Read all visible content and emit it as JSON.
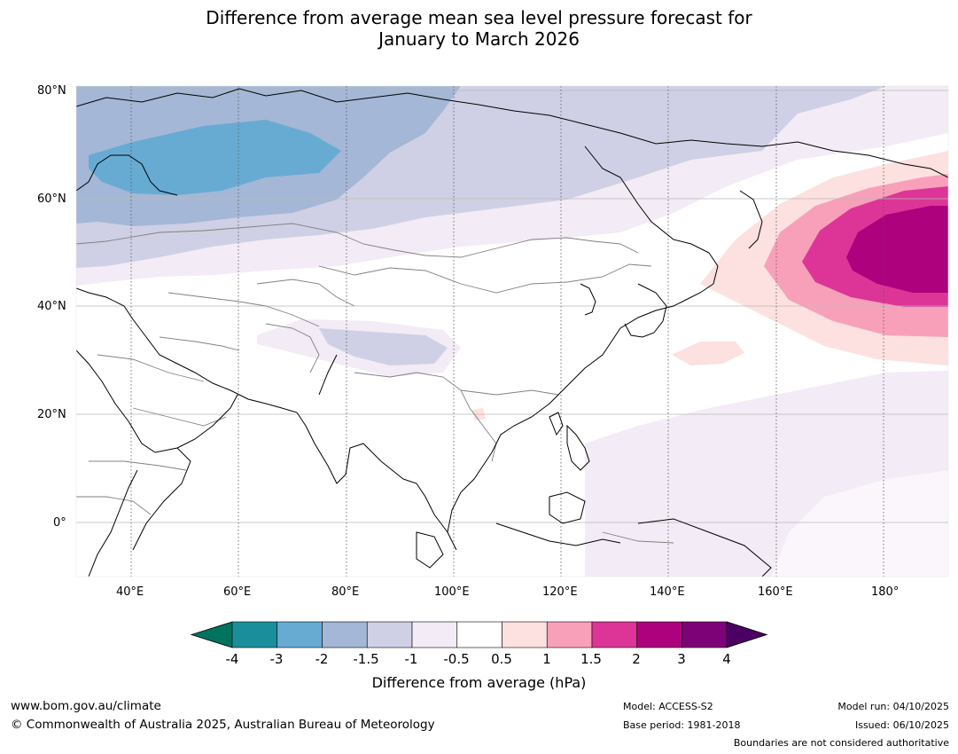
{
  "title": {
    "line1": "Difference from average mean sea level pressure forecast for",
    "line2": "January to March 2026"
  },
  "map": {
    "lat_labels": [
      "80°N",
      "60°N",
      "40°N",
      "20°N",
      "0°"
    ],
    "lon_labels": [
      "40°E",
      "60°E",
      "80°E",
      "100°E",
      "120°E",
      "140°E",
      "160°E",
      "180°"
    ]
  },
  "legend": {
    "tick_labels": [
      "-4",
      "-3",
      "-2",
      "-1.5",
      "-1",
      "-0.5",
      "0.5",
      "1",
      "1.5",
      "2",
      "3",
      "4"
    ],
    "colors": [
      "#00735f",
      "#1a8f9b",
      "#67abd3",
      "#a4b7d6",
      "#cfd0e5",
      "#f3ebf5",
      "#ffffff",
      "#fde0e0",
      "#f8a0ba",
      "#dc3597",
      "#ad017e",
      "#7d0278",
      "#4a0063"
    ],
    "axis_label": "Difference from average (hPa)"
  },
  "footer": {
    "website": "www.bom.gov.au/climate",
    "copyright": "© Commonwealth of Australia 2025, Australian Bureau of Meteorology",
    "model": "Model: ACCESS-S2",
    "base_period": "Base period: 1981-2018",
    "model_run": "Model run: 04/10/2025",
    "issued": "Issued: 06/10/2025",
    "disclaimer": "Boundaries are not considered authoritative"
  }
}
